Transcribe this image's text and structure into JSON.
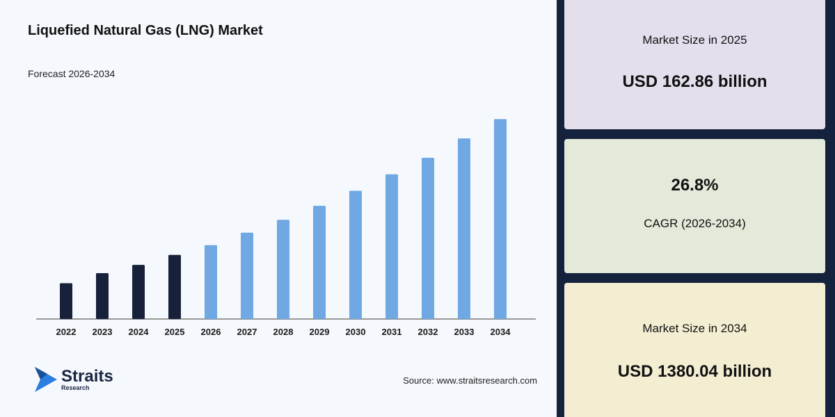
{
  "header": {
    "title": "Liquefied Natural Gas (LNG) Market",
    "subtitle": "Forecast 2026-2034"
  },
  "colors": {
    "historical": "#17213a",
    "forecast": "#6fa8e3",
    "axis": "#999999"
  },
  "chart_data": {
    "type": "bar",
    "title": "Liquefied Natural Gas (LNG) Market",
    "subtitle": "Forecast 2026-2034",
    "categories": [
      "2022",
      "2023",
      "2024",
      "2025",
      "2026",
      "2027",
      "2028",
      "2029",
      "2030",
      "2031",
      "2032",
      "2033",
      "2034"
    ],
    "values": [
      100,
      128,
      151,
      179,
      206,
      241,
      277,
      316,
      358,
      404,
      450,
      504,
      558
    ],
    "historical_count": 4,
    "ylim": [
      0,
      580
    ],
    "grid": false,
    "legend": "none"
  },
  "footer": {
    "logo_name": "Straits",
    "logo_sub": "Research",
    "source": "Source: www.straitsresearch.com"
  },
  "cards": [
    {
      "label": "Market Size in 2025",
      "value": "USD 162.86 billion"
    },
    {
      "value": "26.8%",
      "label": "CAGR (2026-2034)"
    },
    {
      "label": "Market Size in 2034",
      "value": "USD 1380.04 billion"
    }
  ]
}
